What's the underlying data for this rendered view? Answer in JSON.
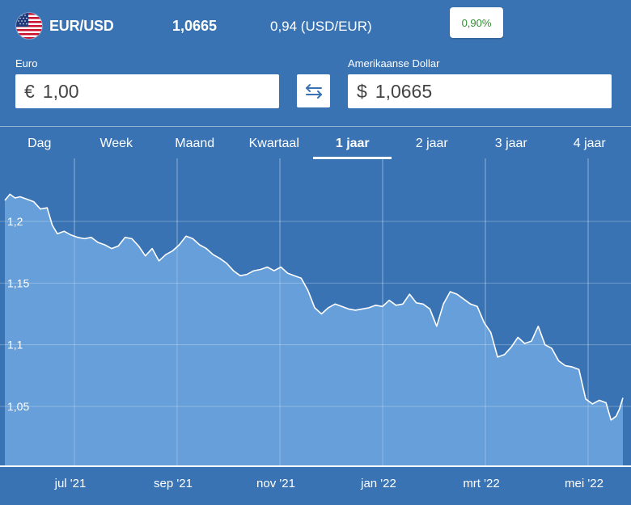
{
  "header": {
    "pair": "EUR/USD",
    "rate": "1,0665",
    "inverse": "0,94 (USD/EUR)",
    "change": "0,90%",
    "flag_icon": "us-flag-icon"
  },
  "converter": {
    "from_label": "Euro",
    "from_symbol": "€",
    "from_value": "1,00",
    "to_label": "Amerikaanse Dollar",
    "to_symbol": "$",
    "to_value": "1,0665",
    "swap_icon": "swap-arrows-icon"
  },
  "tabs": [
    {
      "label": "Dag",
      "active": false
    },
    {
      "label": "Week",
      "active": false
    },
    {
      "label": "Maand",
      "active": false
    },
    {
      "label": "Kwartaal",
      "active": false
    },
    {
      "label": "1 jaar",
      "active": true
    },
    {
      "label": "2 jaar",
      "active": false
    },
    {
      "label": "3 jaar",
      "active": false
    },
    {
      "label": "4 jaar",
      "active": false
    }
  ],
  "colors": {
    "background": "#3a73b3",
    "area_fill": "#6fa7df",
    "line": "#ffffff",
    "change_positive": "#2e8b2e"
  },
  "chart_data": {
    "type": "area",
    "title": "",
    "xlabel": "",
    "ylabel": "",
    "ylim": [
      1.0,
      1.25
    ],
    "yticks": [
      "1,2",
      "1,15",
      "1,1",
      "1,05"
    ],
    "ytick_values": [
      1.2,
      1.15,
      1.1,
      1.05
    ],
    "xticks": [
      "jul '21",
      "sep '21",
      "nov '21",
      "jan '22",
      "mrt '22",
      "mei '22"
    ],
    "grid": true,
    "x_start": "2021-05-20",
    "x_end": "2022-05-20",
    "series": [
      {
        "values": [
          [
            "2021-05-20",
            1.217
          ],
          [
            "2021-05-23",
            1.222
          ],
          [
            "2021-05-26",
            1.219
          ],
          [
            "2021-05-29",
            1.22
          ],
          [
            "2021-06-02",
            1.218
          ],
          [
            "2021-06-06",
            1.216
          ],
          [
            "2021-06-10",
            1.21
          ],
          [
            "2021-06-14",
            1.211
          ],
          [
            "2021-06-17",
            1.197
          ],
          [
            "2021-06-20",
            1.19
          ],
          [
            "2021-06-24",
            1.192
          ],
          [
            "2021-06-28",
            1.189
          ],
          [
            "2021-07-02",
            1.187
          ],
          [
            "2021-07-06",
            1.186
          ],
          [
            "2021-07-10",
            1.187
          ],
          [
            "2021-07-14",
            1.183
          ],
          [
            "2021-07-18",
            1.181
          ],
          [
            "2021-07-22",
            1.178
          ],
          [
            "2021-07-26",
            1.18
          ],
          [
            "2021-07-30",
            1.187
          ],
          [
            "2021-08-03",
            1.186
          ],
          [
            "2021-08-07",
            1.18
          ],
          [
            "2021-08-11",
            1.172
          ],
          [
            "2021-08-15",
            1.178
          ],
          [
            "2021-08-19",
            1.168
          ],
          [
            "2021-08-23",
            1.173
          ],
          [
            "2021-08-27",
            1.176
          ],
          [
            "2021-08-31",
            1.181
          ],
          [
            "2021-09-04",
            1.188
          ],
          [
            "2021-09-08",
            1.186
          ],
          [
            "2021-09-12",
            1.181
          ],
          [
            "2021-09-16",
            1.178
          ],
          [
            "2021-09-20",
            1.173
          ],
          [
            "2021-09-24",
            1.17
          ],
          [
            "2021-09-28",
            1.166
          ],
          [
            "2021-10-02",
            1.16
          ],
          [
            "2021-10-06",
            1.156
          ],
          [
            "2021-10-10",
            1.157
          ],
          [
            "2021-10-14",
            1.16
          ],
          [
            "2021-10-18",
            1.161
          ],
          [
            "2021-10-22",
            1.163
          ],
          [
            "2021-10-26",
            1.16
          ],
          [
            "2021-10-30",
            1.163
          ],
          [
            "2021-11-03",
            1.158
          ],
          [
            "2021-11-07",
            1.156
          ],
          [
            "2021-11-11",
            1.154
          ],
          [
            "2021-11-15",
            1.144
          ],
          [
            "2021-11-19",
            1.13
          ],
          [
            "2021-11-23",
            1.125
          ],
          [
            "2021-11-27",
            1.13
          ],
          [
            "2021-12-01",
            1.133
          ],
          [
            "2021-12-05",
            1.131
          ],
          [
            "2021-12-09",
            1.129
          ],
          [
            "2021-12-13",
            1.128
          ],
          [
            "2021-12-17",
            1.129
          ],
          [
            "2021-12-21",
            1.13
          ],
          [
            "2021-12-25",
            1.132
          ],
          [
            "2021-12-29",
            1.131
          ],
          [
            "2022-01-02",
            1.136
          ],
          [
            "2022-01-06",
            1.132
          ],
          [
            "2022-01-10",
            1.133
          ],
          [
            "2022-01-14",
            1.141
          ],
          [
            "2022-01-18",
            1.134
          ],
          [
            "2022-01-22",
            1.133
          ],
          [
            "2022-01-26",
            1.129
          ],
          [
            "2022-01-30",
            1.115
          ],
          [
            "2022-02-03",
            1.133
          ],
          [
            "2022-02-07",
            1.143
          ],
          [
            "2022-02-11",
            1.141
          ],
          [
            "2022-02-15",
            1.137
          ],
          [
            "2022-02-19",
            1.133
          ],
          [
            "2022-02-23",
            1.131
          ],
          [
            "2022-02-27",
            1.118
          ],
          [
            "2022-03-03",
            1.11
          ],
          [
            "2022-03-07",
            1.09
          ],
          [
            "2022-03-11",
            1.092
          ],
          [
            "2022-03-15",
            1.098
          ],
          [
            "2022-03-19",
            1.106
          ],
          [
            "2022-03-23",
            1.101
          ],
          [
            "2022-03-27",
            1.103
          ],
          [
            "2022-03-31",
            1.115
          ],
          [
            "2022-04-04",
            1.1
          ],
          [
            "2022-04-08",
            1.097
          ],
          [
            "2022-04-12",
            1.087
          ],
          [
            "2022-04-16",
            1.083
          ],
          [
            "2022-04-20",
            1.082
          ],
          [
            "2022-04-24",
            1.08
          ],
          [
            "2022-04-28",
            1.056
          ],
          [
            "2022-05-02",
            1.052
          ],
          [
            "2022-05-06",
            1.055
          ],
          [
            "2022-05-10",
            1.053
          ],
          [
            "2022-05-13",
            1.039
          ],
          [
            "2022-05-16",
            1.042
          ],
          [
            "2022-05-18",
            1.048
          ],
          [
            "2022-05-20",
            1.057
          ]
        ]
      }
    ]
  }
}
